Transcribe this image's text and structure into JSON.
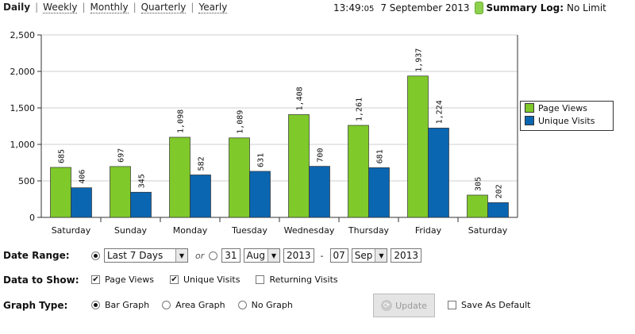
{
  "topnav": {
    "daily": "Daily",
    "weekly": "Weekly",
    "monthly": "Monthly",
    "quarterly": "Quarterly",
    "yearly": "Yearly"
  },
  "status": {
    "time_main": "13:49:",
    "time_sec": "05",
    "date": "7 September 2013",
    "summary_label": "Summary Log:",
    "summary_value": "No Limit",
    "pill_color": "#8ed04f"
  },
  "chart_data": {
    "type": "bar",
    "categories": [
      "Saturday",
      "Sunday",
      "Monday",
      "Tuesday",
      "Wednesday",
      "Thursday",
      "Friday",
      "Saturday"
    ],
    "series": [
      {
        "name": "Page Views",
        "color": "#7fc92a",
        "values": [
          685,
          697,
          1098,
          1089,
          1408,
          1261,
          1937,
          305
        ],
        "labels": [
          "685",
          "697",
          "1,098",
          "1,089",
          "1,408",
          "1,261",
          "1,937",
          "305"
        ]
      },
      {
        "name": "Unique Visits",
        "color": "#0b66b1",
        "values": [
          406,
          345,
          582,
          631,
          700,
          681,
          1224,
          202
        ],
        "labels": [
          "406",
          "345",
          "582",
          "631",
          "700",
          "681",
          "1,224",
          "202"
        ]
      }
    ],
    "ylim": [
      0,
      2500
    ],
    "yticks": [
      "0",
      "500",
      "1,000",
      "1,500",
      "2,000",
      "2,500"
    ],
    "grid": true,
    "legend": "right"
  },
  "controls": {
    "date_range_label": "Date Range:",
    "range_preset": "Last 7 Days",
    "or_text": "or",
    "from_day": "31",
    "from_month": "Aug",
    "from_year": "2013",
    "dash": "-",
    "to_day": "07",
    "to_month": "Sep",
    "to_year": "2013",
    "data_to_show_label": "Data to Show:",
    "page_views": "Page Views",
    "unique_visits": "Unique Visits",
    "returning_visits": "Returning Visits",
    "graph_type_label": "Graph Type:",
    "bar_graph": "Bar Graph",
    "area_graph": "Area Graph",
    "no_graph": "No Graph",
    "update": "Update",
    "save_default": "Save As Default",
    "dropdown_arrow": "▼"
  }
}
